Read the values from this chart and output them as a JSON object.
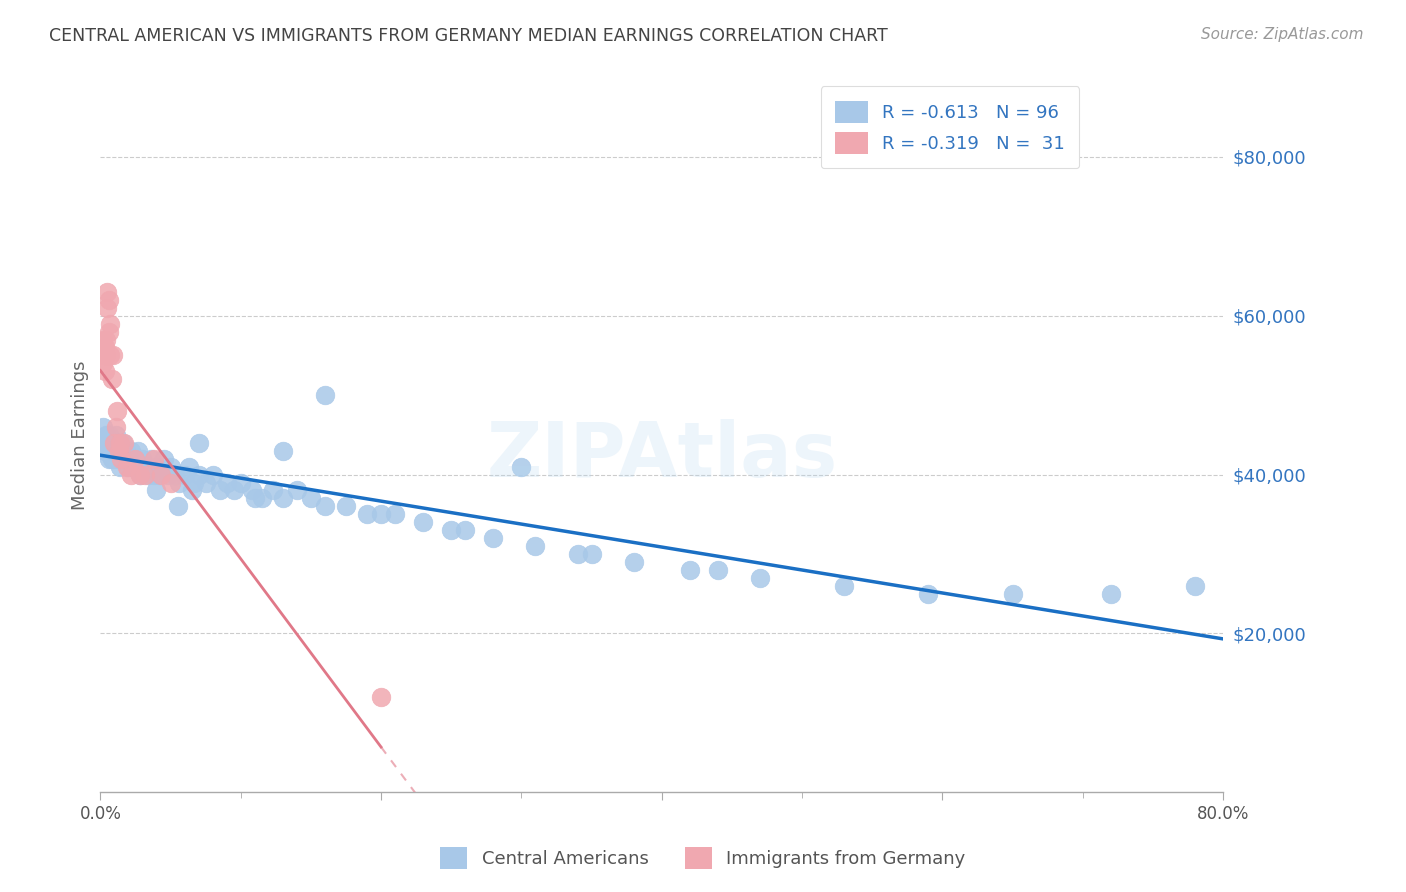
{
  "title": "CENTRAL AMERICAN VS IMMIGRANTS FROM GERMANY MEDIAN EARNINGS CORRELATION CHART",
  "source": "Source: ZipAtlas.com",
  "ylabel": "Median Earnings",
  "yaxis_labels": [
    "$20,000",
    "$40,000",
    "$60,000",
    "$80,000"
  ],
  "yaxis_values": [
    20000,
    40000,
    60000,
    80000
  ],
  "legend_label1": "Central Americans",
  "legend_label2": "Immigrants from Germany",
  "color_blue": "#a8c8e8",
  "color_pink": "#f0a8b0",
  "color_trendline_blue": "#1a6fc4",
  "color_trendline_pink": "#e07888",
  "color_text_blue": "#3375c0",
  "title_color": "#444444",
  "source_color": "#999999",
  "grid_color": "#cccccc",
  "background_color": "#ffffff",
  "blue_points_x": [
    0.001,
    0.002,
    0.003,
    0.003,
    0.004,
    0.004,
    0.005,
    0.005,
    0.006,
    0.006,
    0.007,
    0.007,
    0.008,
    0.008,
    0.009,
    0.009,
    0.01,
    0.01,
    0.011,
    0.011,
    0.012,
    0.012,
    0.013,
    0.013,
    0.014,
    0.015,
    0.015,
    0.016,
    0.017,
    0.018,
    0.019,
    0.02,
    0.021,
    0.022,
    0.023,
    0.025,
    0.026,
    0.027,
    0.028,
    0.03,
    0.032,
    0.034,
    0.036,
    0.038,
    0.04,
    0.042,
    0.045,
    0.048,
    0.05,
    0.053,
    0.056,
    0.06,
    0.063,
    0.067,
    0.07,
    0.075,
    0.08,
    0.085,
    0.09,
    0.095,
    0.1,
    0.108,
    0.115,
    0.123,
    0.13,
    0.14,
    0.15,
    0.16,
    0.175,
    0.19,
    0.21,
    0.23,
    0.25,
    0.28,
    0.31,
    0.34,
    0.38,
    0.42,
    0.47,
    0.53,
    0.59,
    0.65,
    0.72,
    0.78,
    0.035,
    0.055,
    0.065,
    0.11,
    0.2,
    0.26,
    0.35,
    0.44,
    0.16,
    0.3,
    0.13,
    0.07,
    0.04
  ],
  "blue_points_y": [
    44000,
    46000,
    44000,
    43000,
    45000,
    43000,
    44000,
    43000,
    45000,
    42000,
    44000,
    43000,
    42000,
    44000,
    43000,
    42000,
    44000,
    43000,
    45000,
    42000,
    43000,
    44000,
    42000,
    43000,
    41000,
    43000,
    42000,
    44000,
    42000,
    43000,
    42000,
    41000,
    42000,
    43000,
    41000,
    42000,
    41000,
    43000,
    40000,
    42000,
    41000,
    40000,
    42000,
    40000,
    41000,
    40000,
    42000,
    40000,
    41000,
    40000,
    39000,
    40000,
    41000,
    39000,
    40000,
    39000,
    40000,
    38000,
    39000,
    38000,
    39000,
    38000,
    37000,
    38000,
    37000,
    38000,
    37000,
    36000,
    36000,
    35000,
    35000,
    34000,
    33000,
    32000,
    31000,
    30000,
    29000,
    28000,
    27000,
    26000,
    25000,
    25000,
    25000,
    26000,
    41000,
    36000,
    38000,
    37000,
    35000,
    33000,
    30000,
    28000,
    50000,
    41000,
    43000,
    44000,
    38000
  ],
  "pink_points_x": [
    0.001,
    0.002,
    0.002,
    0.003,
    0.003,
    0.004,
    0.004,
    0.005,
    0.005,
    0.006,
    0.006,
    0.007,
    0.007,
    0.008,
    0.009,
    0.01,
    0.011,
    0.012,
    0.013,
    0.014,
    0.015,
    0.017,
    0.019,
    0.022,
    0.025,
    0.028,
    0.032,
    0.038,
    0.043,
    0.05,
    0.2
  ],
  "pink_points_y": [
    55000,
    57000,
    54000,
    56000,
    53000,
    57000,
    55000,
    63000,
    61000,
    62000,
    58000,
    55000,
    59000,
    52000,
    55000,
    44000,
    46000,
    48000,
    43000,
    44000,
    42000,
    44000,
    41000,
    40000,
    42000,
    40000,
    40000,
    42000,
    40000,
    39000,
    12000
  ],
  "xlim": [
    0.0,
    0.8
  ],
  "ylim": [
    0,
    90000
  ]
}
